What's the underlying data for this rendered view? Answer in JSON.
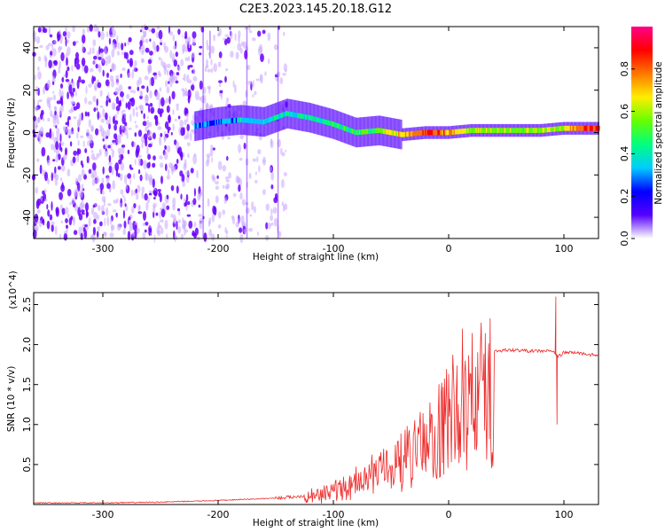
{
  "title": "C2E3.2023.145.20.18.G12",
  "colors": {
    "snr_line": "#ee2a2a",
    "speckle_dark": "#6a00ff",
    "speckle_light": "#c9a6ff",
    "colormap": [
      "#ffffff",
      "#5500ff",
      "#0000ff",
      "#00ccff",
      "#00ff80",
      "#66ff00",
      "#ffee00",
      "#ff7700",
      "#ff0000",
      "#ff0088"
    ]
  },
  "chart_data": [
    {
      "type": "heatmap",
      "title": "C2E3.2023.145.20.18.G12",
      "xlabel": "Height of straight line (km)",
      "ylabel": "Frequency (Hz)",
      "xlim": [
        -360,
        130
      ],
      "ylim": [
        -50,
        50
      ],
      "x_ticks": [
        -300,
        -200,
        -100,
        0,
        100
      ],
      "y_ticks": [
        -40,
        -20,
        0,
        20,
        40
      ],
      "colorbar": {
        "label": "Normalized spectral amplitude",
        "range": [
          0,
          1
        ],
        "ticks": [
          0.0,
          0.2,
          0.4,
          0.6,
          0.8
        ],
        "colormap": "rainbow"
      },
      "signal_track": {
        "x": [
          -220,
          -200,
          -180,
          -160,
          -140,
          -120,
          -100,
          -80,
          -60,
          -40,
          -20,
          0,
          20,
          40,
          60,
          80,
          100,
          130
        ],
        "y": [
          3,
          5,
          6,
          5,
          9,
          7,
          4,
          0,
          1,
          -1,
          0,
          0,
          1,
          1,
          1,
          1,
          2,
          2
        ],
        "amplitude": [
          0.3,
          0.3,
          0.35,
          0.35,
          0.4,
          0.4,
          0.45,
          0.45,
          0.55,
          0.7,
          0.85,
          0.75,
          0.6,
          0.55,
          0.55,
          0.6,
          0.65,
          0.9
        ]
      },
      "noise_region": {
        "x_range": [
          -360,
          -140
        ],
        "y_range": [
          -50,
          50
        ]
      }
    },
    {
      "type": "line",
      "xlabel": "Height of straight line (km)",
      "ylabel": "SNR (10 * v/v)",
      "y_multiplier": "(x10^4)",
      "xlim": [
        -360,
        130
      ],
      "ylim": [
        0,
        2.65
      ],
      "x_ticks": [
        -300,
        -200,
        -100,
        0,
        100
      ],
      "y_ticks": [
        0.5,
        1.0,
        1.5,
        2.0,
        2.5
      ],
      "series": [
        {
          "x": [
            -360,
            -300,
            -250,
            -200,
            -150,
            -130,
            -110,
            -100,
            -90,
            -80,
            -70,
            -60,
            -50,
            -40,
            -30,
            -20,
            -10,
            0,
            10,
            20,
            30,
            40,
            50,
            60,
            70,
            80,
            90,
            95,
            100,
            110,
            120,
            130
          ],
          "y": [
            0.02,
            0.02,
            0.03,
            0.05,
            0.08,
            0.1,
            0.15,
            0.22,
            0.3,
            0.35,
            0.45,
            0.55,
            0.65,
            0.75,
            0.85,
            1.0,
            1.2,
            1.45,
            1.65,
            1.8,
            1.88,
            1.92,
            1.93,
            1.93,
            1.92,
            1.92,
            1.92,
            1.85,
            1.9,
            1.9,
            1.88,
            1.86
          ]
        }
      ],
      "spikes": [
        {
          "x": 12,
          "y": 2.2
        },
        {
          "x": 93,
          "y": 2.6
        },
        {
          "x": 94,
          "y": 1.0
        }
      ]
    }
  ]
}
